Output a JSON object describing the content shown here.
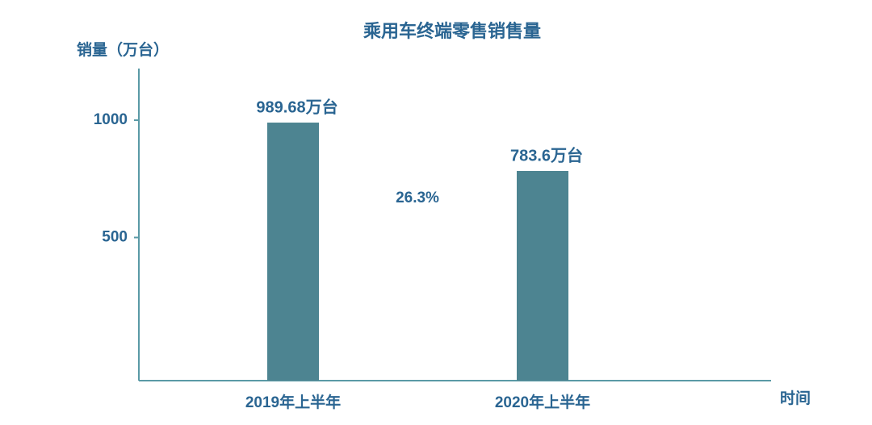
{
  "chart_data": {
    "type": "bar",
    "title": "乘用车终端零售销售量",
    "y_label": "销量（万台）",
    "x_label": "时间",
    "categories": [
      "2019年上半年",
      "2020年上半年"
    ],
    "values": [
      989.68,
      783.6
    ],
    "value_labels": [
      "989.68万台",
      "783.6万台"
    ],
    "color": "#4d8491",
    "annotation": "26.3%",
    "ylim": [
      -110,
      1220
    ],
    "yticks": [
      500,
      1000
    ],
    "grid": false
  }
}
